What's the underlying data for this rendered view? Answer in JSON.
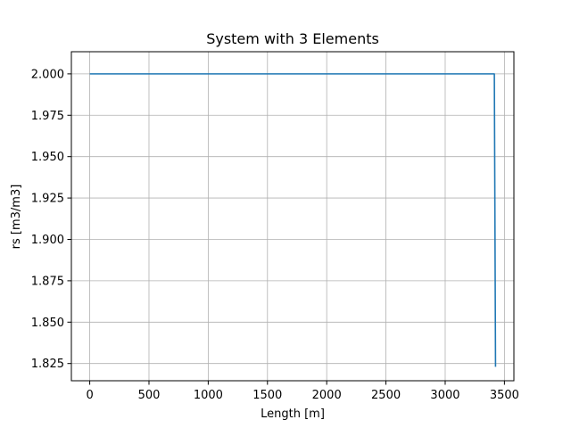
{
  "chart_data": {
    "type": "line",
    "title": "System with 3 Elements",
    "xlabel": "Length [m]",
    "ylabel": "rs [m3/m3]",
    "xlim": [
      -155,
      3580
    ],
    "ylim": [
      1.8146,
      2.0134
    ],
    "xticks": [
      0,
      500,
      1000,
      1500,
      2000,
      2500,
      3000,
      3500
    ],
    "xtick_labels": [
      "0",
      "500",
      "1000",
      "1500",
      "2000",
      "2500",
      "3000",
      "3500"
    ],
    "yticks": [
      1.825,
      1.85,
      1.875,
      1.9,
      1.925,
      1.95,
      1.975,
      2.0
    ],
    "ytick_labels": [
      "1.825",
      "1.850",
      "1.875",
      "1.900",
      "1.925",
      "1.950",
      "1.975",
      "2.000"
    ],
    "grid": true,
    "series": [
      {
        "color": "#1f77b4",
        "x": [
          0,
          3415,
          3425
        ],
        "y": [
          2.0,
          2.0,
          1.823
        ]
      }
    ]
  }
}
